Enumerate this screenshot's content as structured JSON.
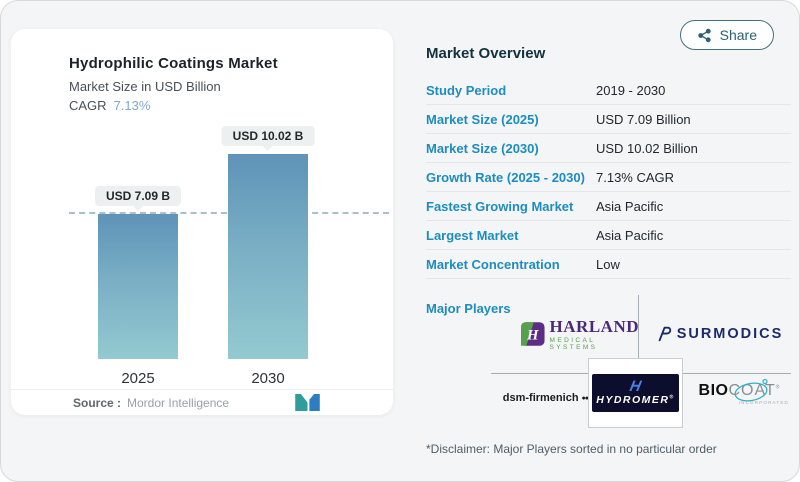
{
  "share": {
    "label": "Share"
  },
  "chart_card": {
    "title": "Hydrophilic Coatings Market",
    "subtitle": "Market Size in USD Billion",
    "cagr_label": "CAGR",
    "cagr_value": "7.13%",
    "source_label": "Source :",
    "source_value": "Mordor Intelligence"
  },
  "chart_data": {
    "type": "bar",
    "title": "Hydrophilic Coatings Market",
    "ylabel": "Market Size in USD Billion",
    "categories": [
      "2025",
      "2030"
    ],
    "values": [
      7.09,
      10.02
    ],
    "bar_labels": [
      "USD 7.09 B",
      "USD 10.02 B"
    ],
    "reference_line": 7.09,
    "ylim": [
      0,
      10.02
    ],
    "grid": false,
    "legend": "none",
    "colors": {
      "bar_top": "#5f93b8",
      "bar_bottom": "#93cad0",
      "dash_line": "#a9bfcb"
    }
  },
  "overview": {
    "title": "Market Overview",
    "rows": [
      {
        "label": "Study Period",
        "value": "2019 - 2030"
      },
      {
        "label": "Market Size (2025)",
        "value": "USD 7.09 Billion"
      },
      {
        "label": "Market Size (2030)",
        "value": "USD 10.02 Billion"
      },
      {
        "label": "Growth Rate (2025 - 2030)",
        "value": "7.13% CAGR"
      },
      {
        "label": "Fastest Growing Market",
        "value": "Asia Pacific"
      },
      {
        "label": "Largest Market",
        "value": "Asia Pacific"
      },
      {
        "label": "Market Concentration",
        "value": "Low"
      }
    ],
    "major_players_label": "Major Players",
    "disclaimer": "*Disclaimer: Major Players sorted in no particular order"
  },
  "logos": {
    "harland": {
      "letter": "H",
      "name": "HARLAND",
      "sub": "MEDICAL SYSTEMS"
    },
    "surmodics": {
      "name": "SURMODICS"
    },
    "dsm": {
      "name": "dsm-firmenich",
      "dots": "●●●"
    },
    "hydromer": {
      "letter": "H",
      "name": "HYDROMER",
      "reg": "®"
    },
    "biocoat": {
      "bio": "BIO",
      "coat": "COAT",
      "reg": "®",
      "sub": "INCORPORATED"
    }
  }
}
